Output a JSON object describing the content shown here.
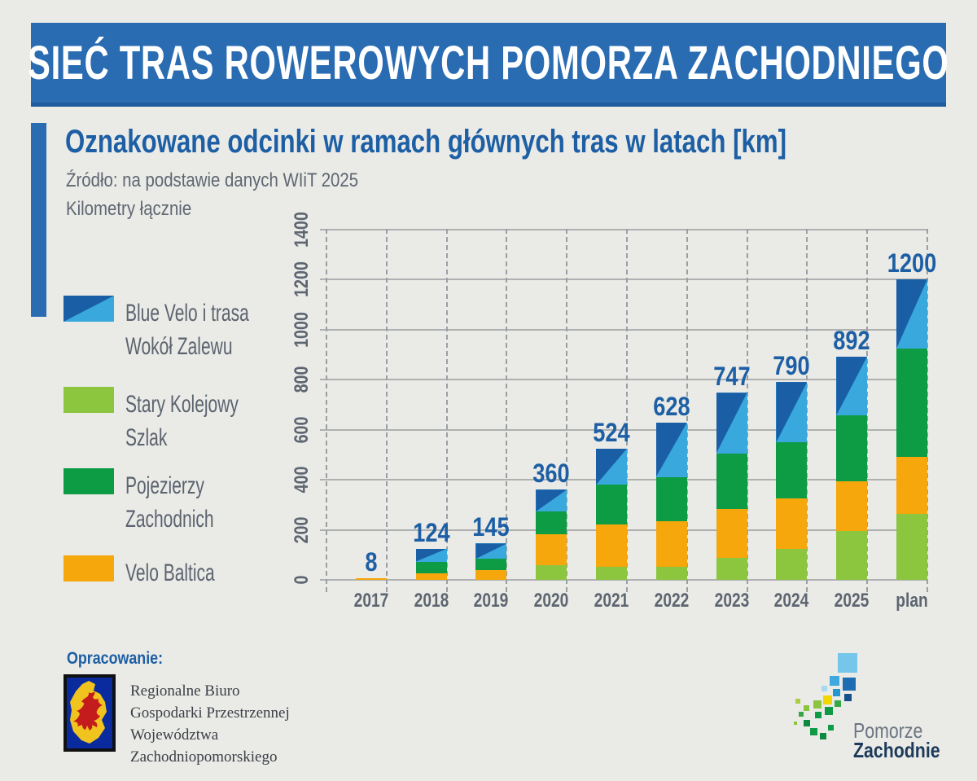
{
  "header": {
    "title": "SIEĆ TRAS ROWEROWYCH POMORZA ZACHODNIEGO"
  },
  "chart_data": {
    "type": "bar",
    "stacked": true,
    "title": "Oznakowane odcinki w ramach głównych tras w latach [km]",
    "source": "Źródło: na podstawie danych WIiT 2025",
    "ylabel": "Kilometry łącznie",
    "categories": [
      "2017",
      "2018",
      "2019",
      "2020",
      "2021",
      "2022",
      "2023",
      "2024",
      "2025",
      "plan"
    ],
    "totals": [
      8,
      124,
      145,
      360,
      524,
      628,
      747,
      790,
      892,
      1200
    ],
    "series": [
      {
        "name": "Stary Kolejowy Szlak",
        "color": "#8cc63f",
        "values": [
          0,
          0,
          0,
          58,
          52,
          52,
          88,
          125,
          194,
          264
        ]
      },
      {
        "name": "Velo Baltica",
        "color": "#f5a70b",
        "values": [
          8,
          26,
          38,
          125,
          169,
          182,
          196,
          199,
          201,
          227
        ]
      },
      {
        "name": "Pojezierzy Zachodnich",
        "color": "#0d9b44",
        "values": [
          0,
          47,
          46,
          90,
          158,
          177,
          220,
          225,
          261,
          432
        ]
      },
      {
        "name": "Blue Velo i trasa Wokół Zalewu",
        "color": "#38a8dd",
        "color2": "#1a5ea6",
        "split_diagonal": true,
        "values": [
          0,
          51,
          61,
          87,
          145,
          217,
          243,
          241,
          236,
          277
        ]
      }
    ],
    "ylim": [
      0,
      1400
    ],
    "ytick_step": 200,
    "grid": "horizontal solid, vertical dashed",
    "legend_position": "left"
  },
  "legend": {
    "items": [
      {
        "line1": "Blue Velo i trasa",
        "line2": "Wokół Zalewu",
        "series_index": 3
      },
      {
        "line1": "Stary Kolejowy",
        "line2": "Szlak",
        "series_index": 0
      },
      {
        "line1": "Pojezierzy",
        "line2": "Zachodnich",
        "series_index": 2
      },
      {
        "line1": "Velo Baltica",
        "line2": "",
        "series_index": 1
      }
    ]
  },
  "footer": {
    "credit_label": "Opracowanie:",
    "credit_lines": [
      "Regionalne Biuro",
      "Gospodarki Przestrzennej",
      "Województwa",
      "Zachodniopomorskiego"
    ],
    "brand": {
      "line1": "Pomorze",
      "line2": "Zachodnie"
    }
  },
  "colors": {
    "banner_blue": "#2a6cb2",
    "accent_blue": "#1d5fa4",
    "text_gray": "#5b636e",
    "background": "#eaeae7"
  }
}
